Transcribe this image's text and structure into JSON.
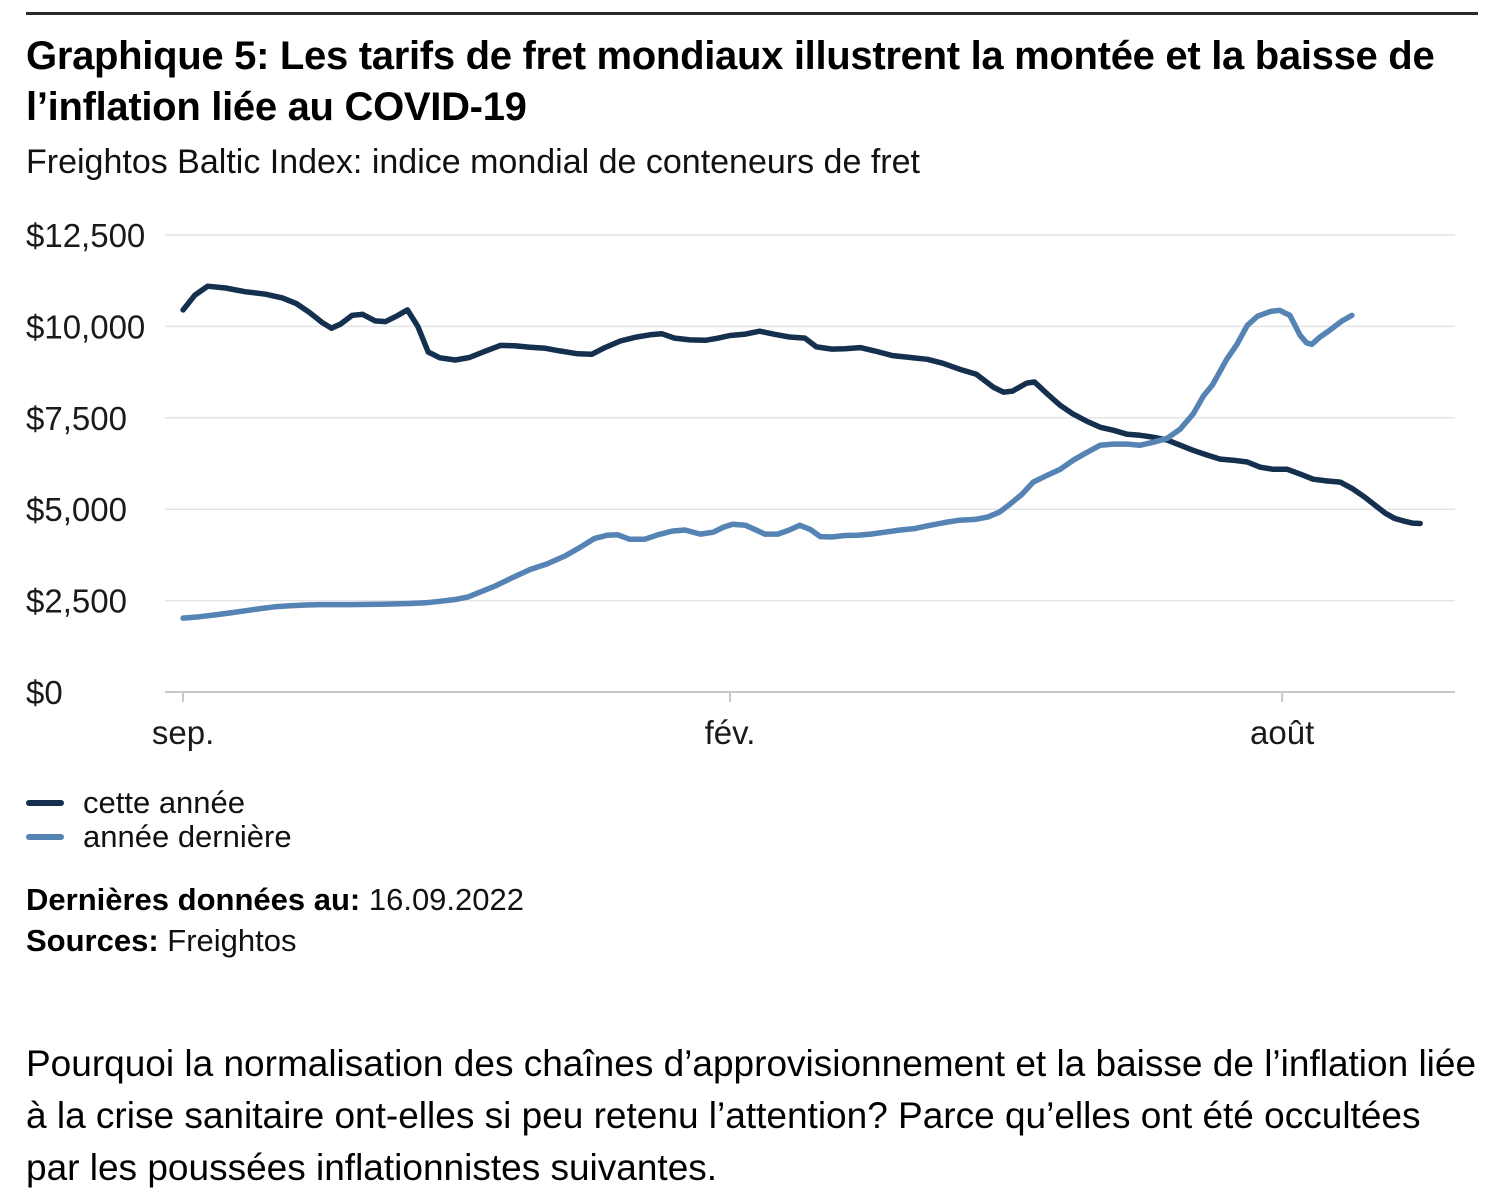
{
  "header": {
    "title": "Graphique 5: Les tarifs de fret mondiaux illustrent la montée et la baisse de l’inflation liée au COVID-19",
    "subtitle": "Freightos Baltic Index: indice mondial de conteneurs de fret"
  },
  "chart_data": {
    "type": "line",
    "title": "Freightos Baltic Index: indice mondial de conteneurs de fret",
    "unit": "USD",
    "ylim": [
      0,
      12500
    ],
    "grid": true,
    "legend_position": "bottom-left",
    "y_ticks": [
      {
        "value": 12500,
        "label": "$12,500"
      },
      {
        "value": 10000,
        "label": "$10,000"
      },
      {
        "value": 7500,
        "label": "$7,500"
      },
      {
        "value": 5000,
        "label": "$5,000"
      },
      {
        "value": 2500,
        "label": "$2,500"
      },
      {
        "value": 0,
        "label": "$0"
      }
    ],
    "x_ticks": [
      {
        "label": "sep.",
        "t": 0.014
      },
      {
        "label": "fév.",
        "t": 0.438
      },
      {
        "label": "août",
        "t": 0.866
      }
    ],
    "series": [
      {
        "name": "cette année",
        "color": "#14304e",
        "points": [
          [
            0.014,
            10450
          ],
          [
            0.023,
            10850
          ],
          [
            0.033,
            11100
          ],
          [
            0.047,
            11050
          ],
          [
            0.062,
            10950
          ],
          [
            0.078,
            10880
          ],
          [
            0.091,
            10780
          ],
          [
            0.102,
            10620
          ],
          [
            0.112,
            10380
          ],
          [
            0.122,
            10100
          ],
          [
            0.129,
            9950
          ],
          [
            0.136,
            10060
          ],
          [
            0.145,
            10300
          ],
          [
            0.153,
            10330
          ],
          [
            0.163,
            10150
          ],
          [
            0.171,
            10130
          ],
          [
            0.18,
            10290
          ],
          [
            0.188,
            10450
          ],
          [
            0.196,
            10000
          ],
          [
            0.204,
            9300
          ],
          [
            0.213,
            9140
          ],
          [
            0.225,
            9080
          ],
          [
            0.236,
            9150
          ],
          [
            0.248,
            9320
          ],
          [
            0.26,
            9480
          ],
          [
            0.271,
            9470
          ],
          [
            0.283,
            9430
          ],
          [
            0.295,
            9400
          ],
          [
            0.306,
            9330
          ],
          [
            0.32,
            9250
          ],
          [
            0.331,
            9240
          ],
          [
            0.341,
            9420
          ],
          [
            0.353,
            9600
          ],
          [
            0.364,
            9700
          ],
          [
            0.376,
            9770
          ],
          [
            0.385,
            9800
          ],
          [
            0.395,
            9680
          ],
          [
            0.407,
            9630
          ],
          [
            0.419,
            9620
          ],
          [
            0.429,
            9680
          ],
          [
            0.438,
            9750
          ],
          [
            0.45,
            9790
          ],
          [
            0.461,
            9870
          ],
          [
            0.473,
            9780
          ],
          [
            0.484,
            9710
          ],
          [
            0.496,
            9680
          ],
          [
            0.505,
            9440
          ],
          [
            0.517,
            9380
          ],
          [
            0.527,
            9390
          ],
          [
            0.539,
            9420
          ],
          [
            0.55,
            9330
          ],
          [
            0.564,
            9200
          ],
          [
            0.578,
            9150
          ],
          [
            0.591,
            9100
          ],
          [
            0.603,
            8990
          ],
          [
            0.616,
            8830
          ],
          [
            0.629,
            8690
          ],
          [
            0.642,
            8340
          ],
          [
            0.65,
            8200
          ],
          [
            0.657,
            8230
          ],
          [
            0.668,
            8450
          ],
          [
            0.674,
            8480
          ],
          [
            0.684,
            8150
          ],
          [
            0.694,
            7840
          ],
          [
            0.704,
            7600
          ],
          [
            0.715,
            7400
          ],
          [
            0.725,
            7240
          ],
          [
            0.735,
            7160
          ],
          [
            0.746,
            7050
          ],
          [
            0.756,
            7020
          ],
          [
            0.766,
            6970
          ],
          [
            0.777,
            6890
          ],
          [
            0.787,
            6750
          ],
          [
            0.797,
            6610
          ],
          [
            0.808,
            6480
          ],
          [
            0.818,
            6370
          ],
          [
            0.828,
            6340
          ],
          [
            0.839,
            6290
          ],
          [
            0.849,
            6150
          ],
          [
            0.859,
            6090
          ],
          [
            0.87,
            6090
          ],
          [
            0.88,
            5960
          ],
          [
            0.89,
            5820
          ],
          [
            0.901,
            5770
          ],
          [
            0.911,
            5740
          ],
          [
            0.921,
            5550
          ],
          [
            0.93,
            5330
          ],
          [
            0.938,
            5110
          ],
          [
            0.946,
            4890
          ],
          [
            0.953,
            4750
          ],
          [
            0.961,
            4670
          ],
          [
            0.967,
            4620
          ],
          [
            0.973,
            4610
          ]
        ]
      },
      {
        "name": "année dernière",
        "color": "#5583b3",
        "points": [
          [
            0.014,
            2020
          ],
          [
            0.027,
            2060
          ],
          [
            0.039,
            2110
          ],
          [
            0.05,
            2160
          ],
          [
            0.062,
            2220
          ],
          [
            0.074,
            2280
          ],
          [
            0.085,
            2330
          ],
          [
            0.097,
            2360
          ],
          [
            0.109,
            2380
          ],
          [
            0.12,
            2390
          ],
          [
            0.143,
            2390
          ],
          [
            0.167,
            2400
          ],
          [
            0.19,
            2420
          ],
          [
            0.202,
            2440
          ],
          [
            0.213,
            2480
          ],
          [
            0.225,
            2530
          ],
          [
            0.235,
            2600
          ],
          [
            0.244,
            2730
          ],
          [
            0.256,
            2900
          ],
          [
            0.27,
            3140
          ],
          [
            0.283,
            3350
          ],
          [
            0.296,
            3500
          ],
          [
            0.31,
            3720
          ],
          [
            0.322,
            3960
          ],
          [
            0.333,
            4200
          ],
          [
            0.343,
            4290
          ],
          [
            0.351,
            4300
          ],
          [
            0.36,
            4180
          ],
          [
            0.372,
            4180
          ],
          [
            0.382,
            4300
          ],
          [
            0.393,
            4400
          ],
          [
            0.403,
            4430
          ],
          [
            0.415,
            4320
          ],
          [
            0.425,
            4370
          ],
          [
            0.433,
            4510
          ],
          [
            0.44,
            4590
          ],
          [
            0.45,
            4560
          ],
          [
            0.457,
            4450
          ],
          [
            0.465,
            4320
          ],
          [
            0.475,
            4320
          ],
          [
            0.484,
            4430
          ],
          [
            0.492,
            4560
          ],
          [
            0.5,
            4450
          ],
          [
            0.508,
            4250
          ],
          [
            0.517,
            4240
          ],
          [
            0.527,
            4280
          ],
          [
            0.537,
            4290
          ],
          [
            0.547,
            4320
          ],
          [
            0.558,
            4370
          ],
          [
            0.57,
            4430
          ],
          [
            0.581,
            4470
          ],
          [
            0.593,
            4560
          ],
          [
            0.605,
            4640
          ],
          [
            0.616,
            4700
          ],
          [
            0.628,
            4720
          ],
          [
            0.638,
            4790
          ],
          [
            0.647,
            4920
          ],
          [
            0.655,
            5140
          ],
          [
            0.664,
            5400
          ],
          [
            0.673,
            5740
          ],
          [
            0.684,
            5930
          ],
          [
            0.694,
            6090
          ],
          [
            0.704,
            6340
          ],
          [
            0.715,
            6560
          ],
          [
            0.725,
            6750
          ],
          [
            0.735,
            6780
          ],
          [
            0.746,
            6780
          ],
          [
            0.756,
            6750
          ],
          [
            0.766,
            6830
          ],
          [
            0.777,
            6940
          ],
          [
            0.787,
            7190
          ],
          [
            0.797,
            7600
          ],
          [
            0.805,
            8100
          ],
          [
            0.812,
            8400
          ],
          [
            0.823,
            9100
          ],
          [
            0.831,
            9510
          ],
          [
            0.839,
            10030
          ],
          [
            0.847,
            10280
          ],
          [
            0.857,
            10410
          ],
          [
            0.864,
            10440
          ],
          [
            0.872,
            10300
          ],
          [
            0.88,
            9750
          ],
          [
            0.885,
            9550
          ],
          [
            0.889,
            9510
          ],
          [
            0.895,
            9700
          ],
          [
            0.903,
            9900
          ],
          [
            0.912,
            10140
          ],
          [
            0.92,
            10300
          ]
        ]
      }
    ]
  },
  "legend": {
    "items": [
      {
        "label": "cette année",
        "color": "#14304e"
      },
      {
        "label": "année dernière",
        "color": "#5583b3"
      }
    ]
  },
  "footnotes": {
    "last_data_label": "Dernières données au:",
    "last_data_value": "16.09.2022",
    "sources_label": "Sources:",
    "sources_value": "Freightos"
  },
  "paragraph": "Pourquoi la normalisation des chaînes d’approvisionnement et la baisse de l’inflation liée à la crise sanitaire ont-elles si peu retenu l’attention? Parce qu’elles ont été occultées par les poussées inflationnistes suivantes."
}
